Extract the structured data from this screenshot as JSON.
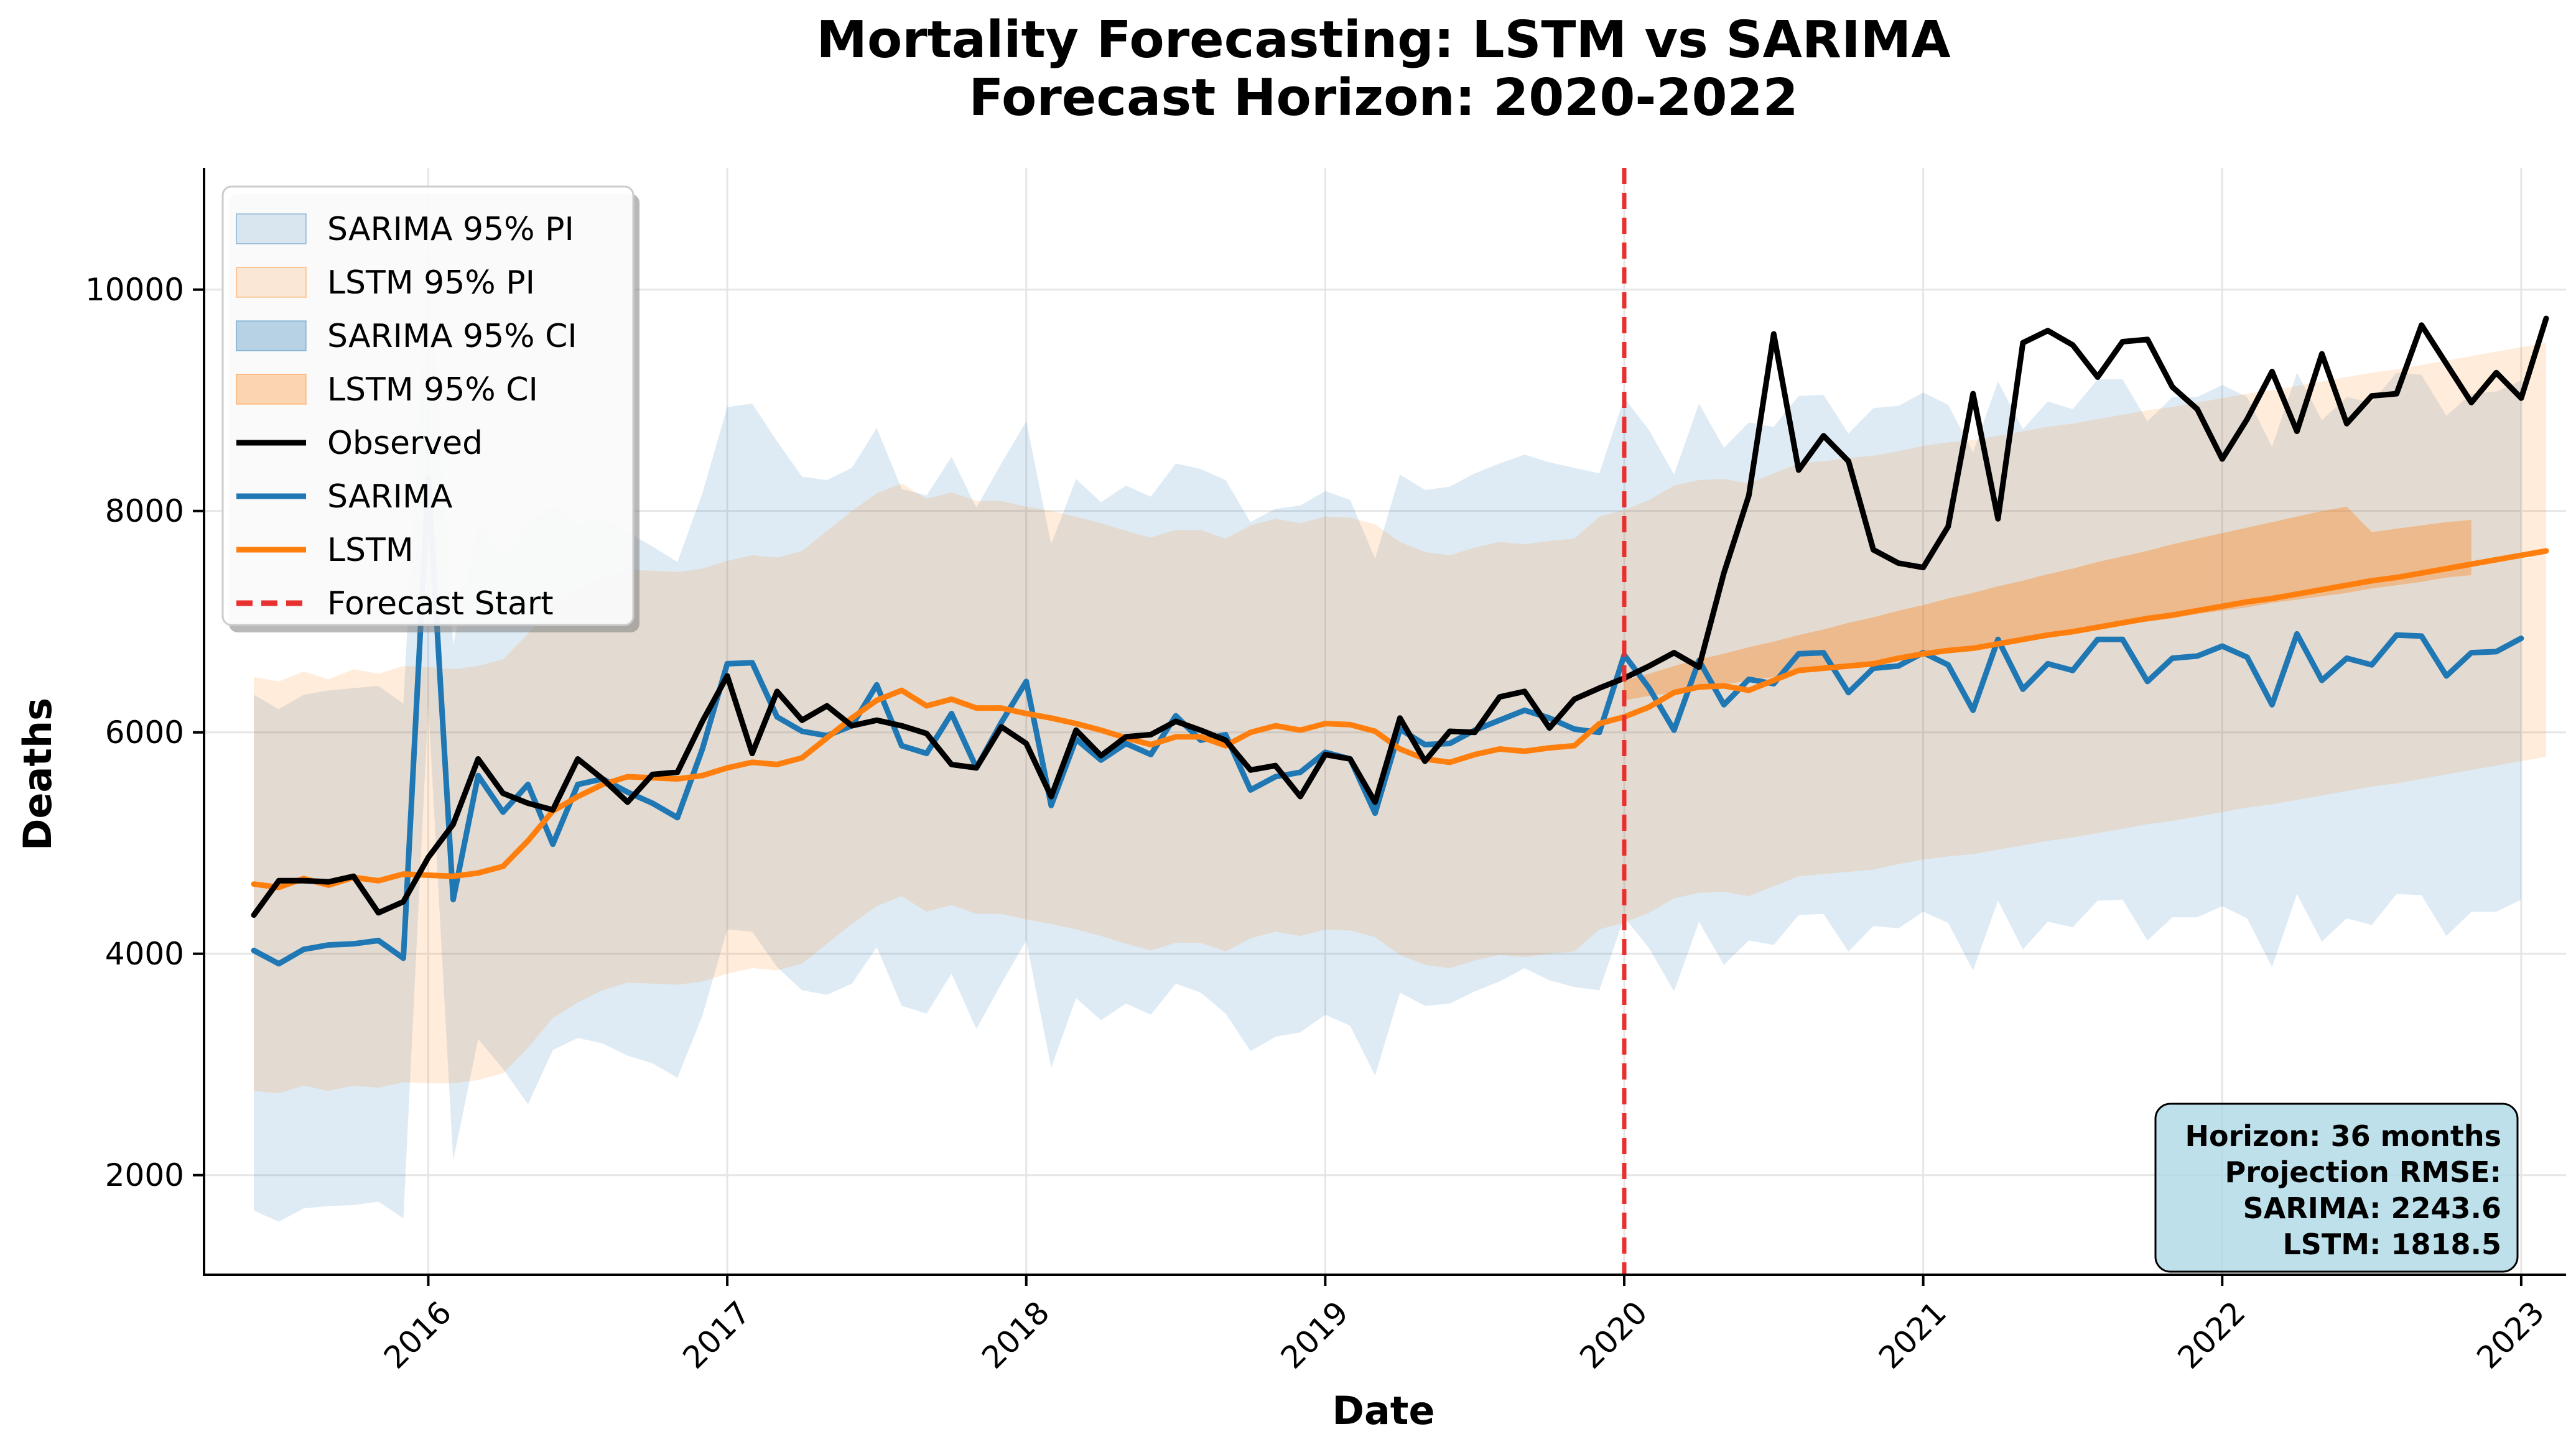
{
  "chart_data": {
    "type": "line",
    "title": "Mortality Forecasting: LSTM vs SARIMA",
    "subtitle": "Forecast Horizon: 2020-2022",
    "xlabel": "Date",
    "ylabel": "Deaths",
    "xlim": [
      2015.25,
      2023.15
    ],
    "ylim": [
      1100,
      11100
    ],
    "x_ticks": [
      2016,
      2017,
      2018,
      2019,
      2020,
      2021,
      2022,
      2023
    ],
    "x_tick_labels": [
      "2016",
      "2017",
      "2018",
      "2019",
      "2020",
      "2021",
      "2022",
      "2023"
    ],
    "y_ticks": [
      2000,
      4000,
      6000,
      8000,
      10000
    ],
    "y_tick_labels": [
      "2000",
      "4000",
      "6000",
      "8000",
      "10000"
    ],
    "grid": true,
    "forecast_start": 2020.0,
    "legend_position": "upper-left",
    "legend": [
      {
        "label": "SARIMA 95% PI",
        "kind": "fill",
        "color": "#1f77b4",
        "opacity": 0.15
      },
      {
        "label": "LSTM 95% PI",
        "kind": "fill",
        "color": "#ff7f0e",
        "opacity": 0.15
      },
      {
        "label": "SARIMA 95% CI",
        "kind": "fill",
        "color": "#1f77b4",
        "opacity": 0.3
      },
      {
        "label": "LSTM 95% CI",
        "kind": "fill",
        "color": "#ff7f0e",
        "opacity": 0.3
      },
      {
        "label": "Observed",
        "kind": "line",
        "color": "#000000"
      },
      {
        "label": "SARIMA",
        "kind": "line",
        "color": "#1f77b4"
      },
      {
        "label": "LSTM",
        "kind": "line",
        "color": "#ff7f0e"
      },
      {
        "label": "Forecast Start",
        "kind": "dashed",
        "color": "#e8302e"
      }
    ],
    "info_box": [
      "Horizon: 36 months",
      "Projection RMSE:",
      "SARIMA: 2243.6",
      "LSTM: 1818.5"
    ],
    "colors": {
      "observed": "#000000",
      "sarima": "#1f77b4",
      "lstm": "#ff7f0e",
      "forecast_line": "#e8302e",
      "info_box_fill": "#add8e6"
    },
    "start": "2015-06",
    "series": [
      {
        "name": "Observed",
        "values": [
          4350,
          4660,
          4660,
          4650,
          4700,
          4370,
          4470,
          4870,
          5170,
          5760,
          5450,
          5360,
          5300,
          5760,
          5580,
          5370,
          5620,
          5640,
          6100,
          6510,
          5810,
          6370,
          6110,
          6240,
          6060,
          6110,
          6060,
          5990,
          5710,
          5680,
          6050,
          5900,
          5420,
          6020,
          5790,
          5960,
          5980,
          6100,
          6020,
          5930,
          5660,
          5700,
          5420,
          5800,
          5760,
          5370,
          6130,
          5740,
          6010,
          6000,
          6320,
          6370,
          6040,
          6300,
          6400,
          6490,
          6600,
          6720,
          6590,
          7440,
          8140,
          9600,
          8370,
          8680,
          8450,
          7650,
          7530,
          7490,
          7860,
          9060,
          7930,
          9520,
          9630,
          9500,
          9210,
          9530,
          9550,
          9120,
          8920,
          8470,
          8830,
          9260,
          8720,
          9420,
          8790,
          9040,
          9060,
          9680,
          9330,
          8980,
          9250,
          9020,
          9740
        ]
      },
      {
        "name": "SARIMA",
        "values": [
          4030,
          3910,
          4040,
          4080,
          4090,
          4120,
          3960,
          8290,
          4490,
          5610,
          5280,
          5530,
          4990,
          5530,
          5580,
          5460,
          5360,
          5230,
          5850,
          6620,
          6630,
          6140,
          6010,
          5970,
          6060,
          6430,
          5880,
          5810,
          6170,
          5680,
          6090,
          6460,
          5340,
          5940,
          5750,
          5900,
          5800,
          6150,
          5930,
          5980,
          5480,
          5600,
          5640,
          5820,
          5760,
          5270,
          6030,
          5890,
          5900,
          6020,
          6110,
          6200,
          6130,
          6030,
          6000,
          6700,
          6400,
          6020,
          6650,
          6250,
          6480,
          6440,
          6710,
          6720,
          6360,
          6580,
          6600,
          6720,
          6610,
          6200,
          6840,
          6390,
          6620,
          6560,
          6840,
          6840,
          6460,
          6670,
          6690,
          6780,
          6680,
          6250,
          6890,
          6470,
          6670,
          6610,
          6880,
          6870,
          6510,
          6720,
          6730,
          6850
        ]
      },
      {
        "name": "LSTM",
        "values": [
          4630,
          4600,
          4680,
          4620,
          4690,
          4660,
          4720,
          4710,
          4700,
          4730,
          4790,
          5020,
          5290,
          5420,
          5530,
          5600,
          5590,
          5580,
          5610,
          5680,
          5730,
          5710,
          5770,
          5950,
          6130,
          6290,
          6380,
          6240,
          6300,
          6220,
          6220,
          6170,
          6130,
          6080,
          6020,
          5950,
          5890,
          5960,
          5960,
          5880,
          6000,
          6060,
          6020,
          6080,
          6070,
          6010,
          5850,
          5760,
          5730,
          5800,
          5850,
          5830,
          5860,
          5880,
          6080,
          6140,
          6230,
          6360,
          6410,
          6420,
          6380,
          6470,
          6560,
          6580,
          6600,
          6620,
          6670,
          6710,
          6740,
          6760,
          6800,
          6840,
          6880,
          6910,
          6950,
          6990,
          7030,
          7060,
          7100,
          7140,
          7180,
          7210,
          7250,
          7290,
          7330,
          7370,
          7400,
          7440,
          7480,
          7520,
          7560,
          7600,
          7640
        ]
      },
      {
        "name": "SARIMA 95% PI",
        "lower": [
          1680,
          1580,
          1700,
          1720,
          1730,
          1760,
          1610,
          6250,
          2130,
          3230,
          2960,
          2640,
          3130,
          3240,
          3190,
          3080,
          3010,
          2880,
          3440,
          4220,
          4200,
          3880,
          3670,
          3630,
          3730,
          4060,
          3530,
          3460,
          3820,
          3320,
          3730,
          4120,
          2970,
          3600,
          3400,
          3550,
          3450,
          3730,
          3650,
          3460,
          3120,
          3250,
          3290,
          3450,
          3350,
          2900,
          3650,
          3530,
          3550,
          3660,
          3750,
          3870,
          3760,
          3700,
          3670,
          4330,
          4050,
          3660,
          4290,
          3900,
          4120,
          4080,
          4350,
          4360,
          4020,
          4250,
          4230,
          4380,
          4280,
          3850,
          4480,
          4040,
          4290,
          4240,
          4480,
          4490,
          4120,
          4330,
          4330,
          4430,
          4320,
          3880,
          4540,
          4110,
          4320,
          4260,
          4540,
          4530,
          4160,
          4380,
          4380,
          4490
        ],
        "upper": [
          6340,
          6210,
          6340,
          6380,
          6400,
          6420,
          6260,
          10500,
          6790,
          7900,
          7570,
          7880,
          8040,
          7870,
          7940,
          7810,
          7680,
          7540,
          8160,
          8940,
          8970,
          8630,
          8310,
          8280,
          8390,
          8750,
          8200,
          8140,
          8490,
          8030,
          8430,
          8810,
          7700,
          8290,
          8080,
          8230,
          8130,
          8430,
          8380,
          8280,
          7900,
          8020,
          8050,
          8180,
          8100,
          7570,
          8330,
          8190,
          8220,
          8340,
          8430,
          8510,
          8440,
          8390,
          8340,
          9020,
          8730,
          8330,
          8970,
          8570,
          8800,
          8760,
          9040,
          9050,
          8700,
          8930,
          8950,
          9070,
          8960,
          8530,
          9170,
          8740,
          8990,
          8920,
          9190,
          9190,
          8810,
          9030,
          9030,
          9140,
          9030,
          8580,
          9250,
          8820,
          9030,
          8980,
          9250,
          9230,
          8860,
          9060,
          9080,
          9180
        ]
      },
      {
        "name": "LSTM 95% PI",
        "lower": [
          2760,
          2740,
          2810,
          2760,
          2810,
          2790,
          2840,
          2830,
          2830,
          2860,
          2920,
          3150,
          3420,
          3560,
          3670,
          3740,
          3730,
          3720,
          3750,
          3820,
          3870,
          3850,
          3910,
          4090,
          4270,
          4430,
          4520,
          4380,
          4440,
          4360,
          4360,
          4310,
          4270,
          4220,
          4160,
          4090,
          4030,
          4100,
          4100,
          4020,
          4140,
          4200,
          4160,
          4220,
          4210,
          4150,
          3990,
          3900,
          3870,
          3940,
          3990,
          3970,
          4000,
          4020,
          4220,
          4280,
          4370,
          4500,
          4550,
          4560,
          4520,
          4610,
          4700,
          4720,
          4740,
          4760,
          4810,
          4850,
          4880,
          4900,
          4940,
          4980,
          5020,
          5050,
          5090,
          5130,
          5170,
          5200,
          5240,
          5280,
          5320,
          5350,
          5390,
          5430,
          5470,
          5510,
          5540,
          5580,
          5620,
          5660,
          5700,
          5740,
          5780
        ],
        "upper": [
          6500,
          6460,
          6550,
          6480,
          6570,
          6530,
          6600,
          6590,
          6570,
          6600,
          6660,
          6890,
          7160,
          7290,
          7400,
          7470,
          7460,
          7450,
          7480,
          7550,
          7600,
          7580,
          7640,
          7820,
          8000,
          8160,
          8250,
          8110,
          8170,
          8090,
          8090,
          8040,
          8000,
          7950,
          7890,
          7820,
          7760,
          7830,
          7830,
          7750,
          7870,
          7930,
          7890,
          7950,
          7940,
          7880,
          7720,
          7630,
          7600,
          7670,
          7720,
          7700,
          7730,
          7750,
          7950,
          8010,
          8100,
          8230,
          8280,
          8290,
          8250,
          8340,
          8430,
          8450,
          8480,
          8500,
          8540,
          8590,
          8620,
          8640,
          8680,
          8720,
          8760,
          8790,
          8830,
          8870,
          8910,
          8940,
          8980,
          9020,
          9060,
          9090,
          9130,
          9170,
          9210,
          9250,
          9280,
          9320,
          9360,
          9400,
          9440,
          9480,
          9520
        ]
      },
      {
        "name": "LSTM 95% CI",
        "x_start": "2020-01",
        "lower": [
          6290,
          6330,
          6360,
          6400,
          6430,
          6470,
          6500,
          6540,
          6570,
          6610,
          6640,
          6670,
          6710,
          6740,
          6770,
          6800,
          6840,
          6870,
          6900,
          6940,
          6970,
          7000,
          7030,
          7070,
          7100,
          7130,
          7170,
          7200,
          7230,
          7260,
          7300,
          7330,
          7360,
          7400,
          7420
        ],
        "upper": [
          6470,
          6530,
          6600,
          6660,
          6710,
          6770,
          6820,
          6880,
          6930,
          6990,
          7040,
          7100,
          7150,
          7210,
          7260,
          7320,
          7370,
          7430,
          7480,
          7540,
          7590,
          7640,
          7700,
          7750,
          7800,
          7850,
          7900,
          7950,
          8000,
          8040,
          7810,
          7840,
          7870,
          7900,
          7920
        ]
      }
    ]
  }
}
